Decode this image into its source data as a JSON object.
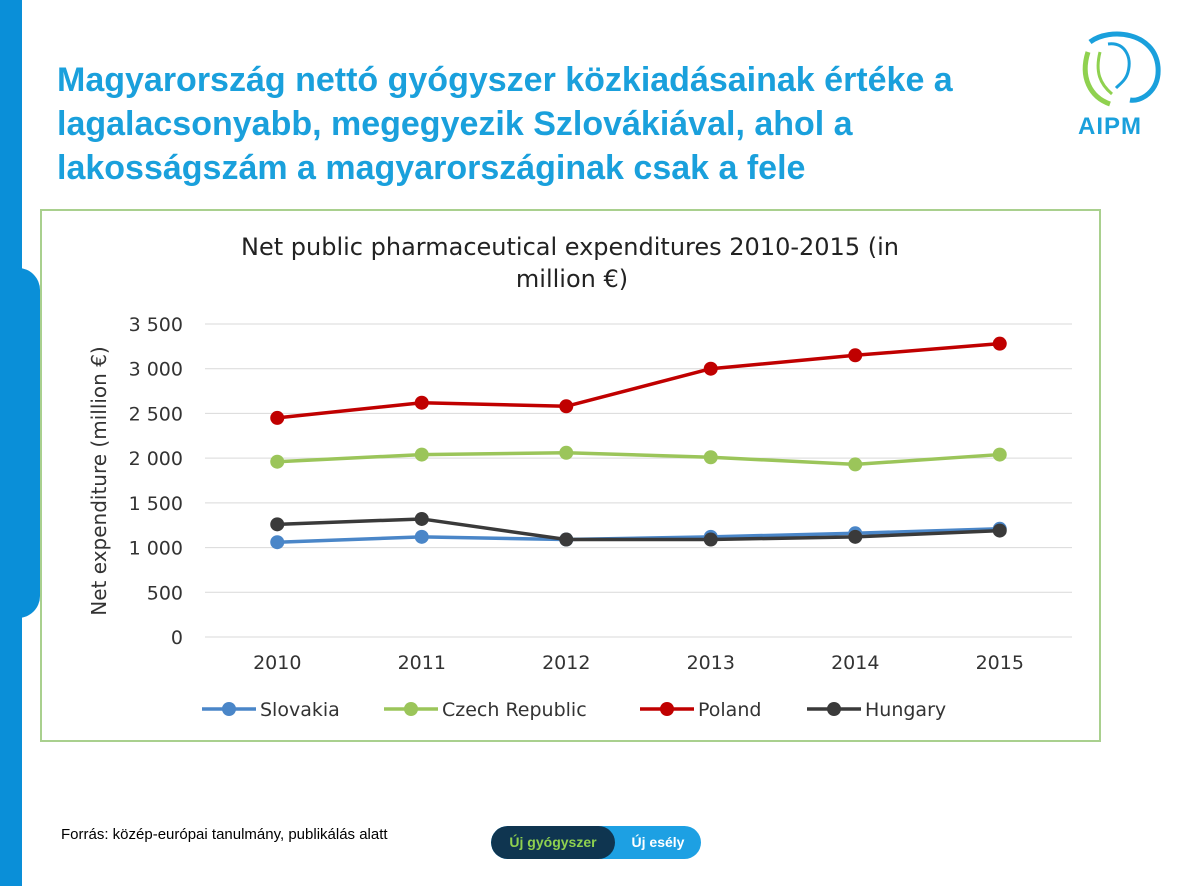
{
  "slide": {
    "title": "Magyarország nettó gyógyszer közkiadásainak értéke a lagalacsonyabb, megegyezik Szlovákiával, ahol a lakosságszám a magyarországinak csak a fele",
    "logo_text": "AIPM",
    "source": "Forrás: közép-európai tanulmány, publikálás alatt",
    "badge_left": "Új gyógyszer",
    "badge_right": "Új esély"
  },
  "colors": {
    "accent": "#1aa0dc",
    "frame_border": "#a9d08e",
    "Slovakia": "#4a86c8",
    "Czech Republic": "#9bc55a",
    "Poland": "#c00000",
    "Hungary": "#3a3a3a"
  },
  "chart_data": {
    "type": "line",
    "title_line1": "Net public pharmaceutical expenditures 2010-2015 (in",
    "title_line2": "million €)",
    "xlabel": "",
    "ylabel": "Net expenditure (million €)",
    "ylim": [
      0,
      3500
    ],
    "yticks": [
      0,
      500,
      1000,
      1500,
      2000,
      2500,
      3000,
      3500
    ],
    "ytick_labels": [
      "0",
      "500",
      "1 000",
      "1 500",
      "2 000",
      "2 500",
      "3 000",
      "3 500"
    ],
    "categories": [
      "2010",
      "2011",
      "2012",
      "2013",
      "2014",
      "2015"
    ],
    "grid": true,
    "legend_position": "bottom",
    "series": [
      {
        "name": "Slovakia",
        "values": [
          1060,
          1120,
          1090,
          1120,
          1160,
          1210
        ]
      },
      {
        "name": "Czech Republic",
        "values": [
          1960,
          2040,
          2060,
          2010,
          1930,
          2040
        ]
      },
      {
        "name": "Poland",
        "values": [
          2450,
          2620,
          2580,
          3000,
          3150,
          3280
        ]
      },
      {
        "name": "Hungary",
        "values": [
          1260,
          1320,
          1090,
          1090,
          1120,
          1190
        ]
      }
    ]
  }
}
